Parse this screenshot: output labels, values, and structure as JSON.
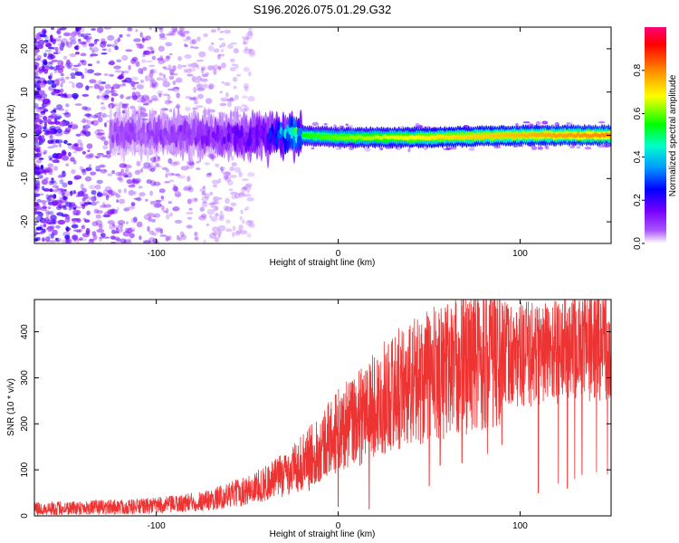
{
  "title": "S196.2026.075.01.29.G32",
  "chart_data": [
    {
      "type": "heatmap",
      "title": "S196.2026.075.01.29.G32",
      "xlabel": "Height of straight line (km)",
      "ylabel": "Frequency (Hz)",
      "xlim": [
        -167,
        150
      ],
      "ylim": [
        -25,
        25
      ],
      "xticks": [
        -100,
        0,
        100
      ],
      "yticks": [
        -20,
        -10,
        0,
        10,
        20
      ],
      "colorbar": {
        "label": "Normalized spectral amplitude",
        "range": [
          0,
          1
        ],
        "ticks": [
          0.0,
          0.2,
          0.4,
          0.6,
          0.8
        ],
        "tick_labels": [
          "0.0",
          "0.2",
          "0.4",
          "0.6",
          "0.8"
        ],
        "colormap": [
          "#ffffff",
          "#8800ff",
          "#0000ff",
          "#00ccff",
          "#00ff00",
          "#ffff00",
          "#ff8800",
          "#ff0000",
          "#ff0088"
        ]
      },
      "ridge": [
        {
          "height": -110,
          "frequency": 0.5,
          "amplitude": 0.08
        },
        {
          "height": -70,
          "frequency": 0.0,
          "amplitude": 0.12
        },
        {
          "height": -40,
          "frequency": -0.5,
          "amplitude": 0.2
        },
        {
          "height": -20,
          "frequency": 0.0,
          "amplitude": 0.55
        },
        {
          "height": 0,
          "frequency": -0.5,
          "amplitude": 0.6
        },
        {
          "height": 50,
          "frequency": -0.5,
          "amplitude": 0.7
        },
        {
          "height": 100,
          "frequency": 0.0,
          "amplitude": 0.75
        },
        {
          "height": 150,
          "frequency": 0.0,
          "amplitude": 0.8
        }
      ]
    },
    {
      "type": "line",
      "xlabel": "Height of straight line (km)",
      "ylabel": "SNR (10 * v/v)",
      "xlim": [
        -167,
        150
      ],
      "ylim": [
        0,
        470
      ],
      "xticks": [
        -100,
        0,
        100
      ],
      "yticks": [
        0,
        100,
        200,
        300,
        400
      ],
      "color": "#ff0000",
      "series": [
        {
          "name": "SNR",
          "x": [
            -167,
            -140,
            -110,
            -90,
            -70,
            -50,
            -40,
            -30,
            -20,
            -10,
            0,
            10,
            20,
            30,
            40,
            50,
            60,
            70,
            80,
            90,
            100,
            110,
            120,
            130,
            140,
            150
          ],
          "values": [
            15,
            18,
            20,
            25,
            35,
            55,
            70,
            90,
            115,
            150,
            185,
            210,
            240,
            270,
            290,
            305,
            320,
            335,
            345,
            350,
            350,
            355,
            360,
            365,
            370,
            375
          ]
        }
      ],
      "dropouts": [
        {
          "x": -16,
          "value": 55
        },
        {
          "x": -11,
          "value": 75
        },
        {
          "x": 0,
          "value": 20
        },
        {
          "x": 12,
          "value": 110
        },
        {
          "x": 17,
          "value": 15
        },
        {
          "x": 50,
          "value": 65
        },
        {
          "x": 56,
          "value": 110
        },
        {
          "x": 68,
          "value": 115
        },
        {
          "x": 82,
          "value": 135
        },
        {
          "x": 90,
          "value": 155
        },
        {
          "x": 102,
          "value": 240
        },
        {
          "x": 110,
          "value": 50
        },
        {
          "x": 121,
          "value": 70
        },
        {
          "x": 126,
          "value": 60
        },
        {
          "x": 130,
          "value": 80
        },
        {
          "x": 134,
          "value": 90
        },
        {
          "x": 142,
          "value": 95
        },
        {
          "x": 148,
          "value": 90
        }
      ]
    }
  ]
}
